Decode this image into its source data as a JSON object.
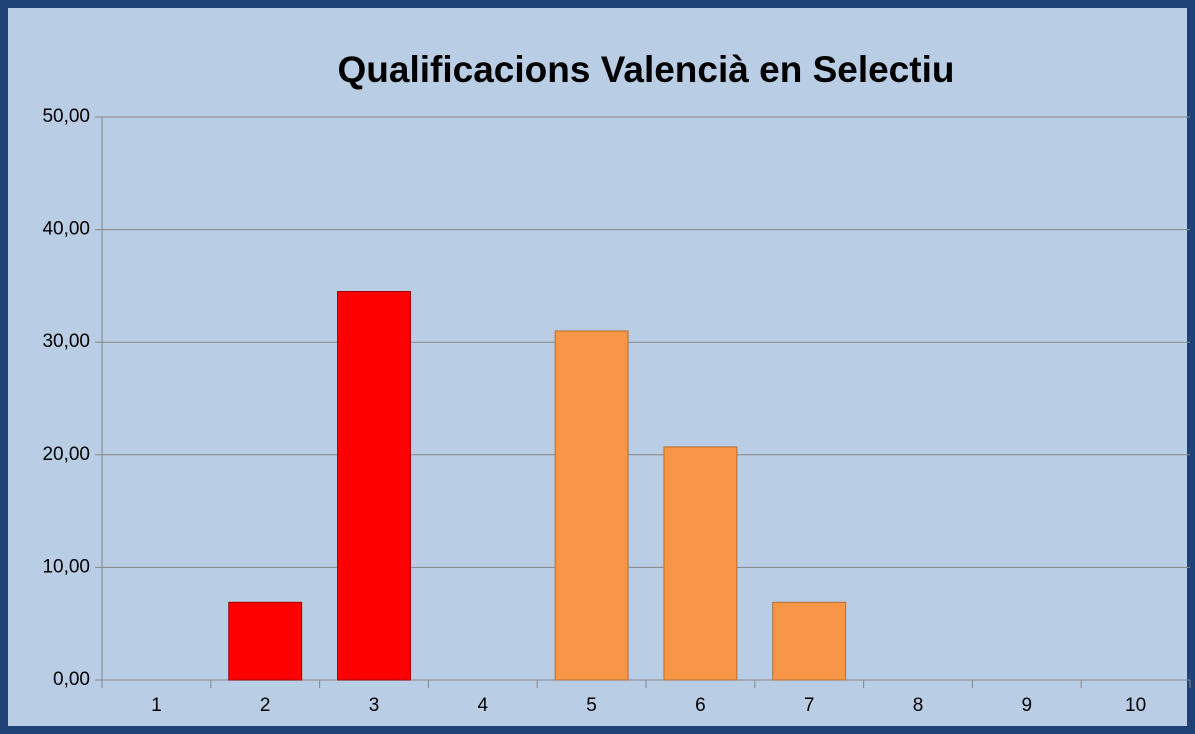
{
  "chart_data": {
    "type": "bar",
    "title": "Qualificacions Valencià en Selectiu",
    "categories": [
      "1",
      "2",
      "3",
      "4",
      "5",
      "6",
      "7",
      "8",
      "9",
      "10"
    ],
    "values": [
      0,
      6.9,
      34.5,
      0,
      31.0,
      20.7,
      6.9,
      0,
      0,
      0
    ],
    "colors": [
      "#f79646",
      "#ff0000",
      "#ff0000",
      "#f79646",
      "#f79646",
      "#f79646",
      "#f79646",
      "#f79646",
      "#f79646",
      "#f79646"
    ],
    "ylim": [
      0,
      50
    ],
    "yticks": [
      {
        "value": 0,
        "label": "0,00"
      },
      {
        "value": 10,
        "label": "10,00"
      },
      {
        "value": 20,
        "label": "20,00"
      },
      {
        "value": 30,
        "label": "30,00"
      },
      {
        "value": 40,
        "label": "40,00"
      },
      {
        "value": 50,
        "label": "50,00"
      }
    ],
    "grid": true
  }
}
